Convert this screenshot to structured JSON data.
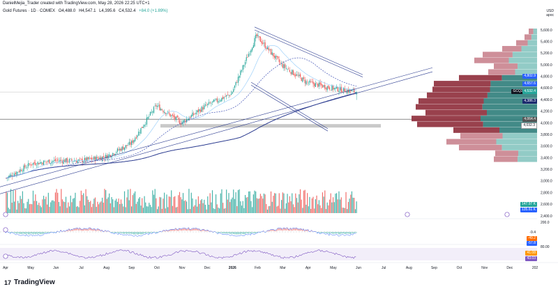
{
  "header": {
    "credit": "DanielMejia_Trader created with TradingView.com, May 28, 2026 22:25 UTC+1"
  },
  "symbol": {
    "name": "Gold Futures · 1D · COMEX",
    "open": "O4,488.0",
    "high": "H4,547.1",
    "low": "L4,395.6",
    "close": "C4,532.4",
    "change": "+84.0 (+1.89%)"
  },
  "currency": {
    "code": "USD",
    "mode": "apoc"
  },
  "price_axis": {
    "ticks": [
      "5,600.0",
      "5,400.0",
      "5,200.0",
      "5,000.0",
      "4,800.0",
      "4,600.0",
      "4,400.0",
      "4,200.0",
      "4,000.0",
      "3,800.0",
      "3,600.0",
      "3,400.0",
      "3,200.0",
      "3,000.0",
      "2,800.0",
      "2,600.0",
      "2,400.0"
    ]
  },
  "price_tags": {
    "t1": "4,802.9",
    "t2": "4,657.6",
    "ticker": "GCQ2026",
    "last": "4,532.4",
    "t3": "4,386.3",
    "t4": "4,064.4",
    "t5": "4,032.3"
  },
  "volume_tags": {
    "v1": "147.97 K",
    "v2": "135.61 K"
  },
  "macd_axis": {
    "top": "200.0",
    "v1": "-9.4",
    "v2": "-49.2",
    "v3": "-57.8"
  },
  "rsi_axis": {
    "v1": "80.00",
    "v2": "41.08",
    "v3": "43.03"
  },
  "time_axis": [
    "Apr",
    "May",
    "Jun",
    "Jul",
    "Aug",
    "Sep",
    "Oct",
    "Nov",
    "Dec",
    "2026",
    "Feb",
    "Mar",
    "Apr",
    "May",
    "Jun",
    "Jul",
    "Aug",
    "Sep",
    "Oct",
    "Nov",
    "Dec",
    "202"
  ],
  "colors": {
    "up": "#26a69a",
    "down": "#ef5350",
    "ma": "#2a3a8f",
    "blue_tag": "#2962ff",
    "navy_tag": "#1c2a6e"
  },
  "brand": "TradingView",
  "chart_data": {
    "type": "candlestick",
    "title": "Gold Futures · 1D · COMEX",
    "y_range": [
      2400,
      5700
    ],
    "x_range": [
      "2025-04",
      "2027-01"
    ],
    "close_path_approx": [
      {
        "x": "2025-04",
        "y": 3050
      },
      {
        "x": "2025-05",
        "y": 3300
      },
      {
        "x": "2025-06",
        "y": 3350
      },
      {
        "x": "2025-07",
        "y": 3350
      },
      {
        "x": "2025-08",
        "y": 3420
      },
      {
        "x": "2025-09",
        "y": 3650
      },
      {
        "x": "2025-10",
        "y": 4300
      },
      {
        "x": "2025-11",
        "y": 4000
      },
      {
        "x": "2025-12",
        "y": 4300
      },
      {
        "x": "2026-01",
        "y": 4500
      },
      {
        "x": "2026-02",
        "y": 5500
      },
      {
        "x": "2026-03",
        "y": 5000
      },
      {
        "x": "2026-04",
        "y": 4700
      },
      {
        "x": "2026-05",
        "y": 4600
      },
      {
        "x": "2026-05-28",
        "y": 4532.4
      }
    ]
  }
}
